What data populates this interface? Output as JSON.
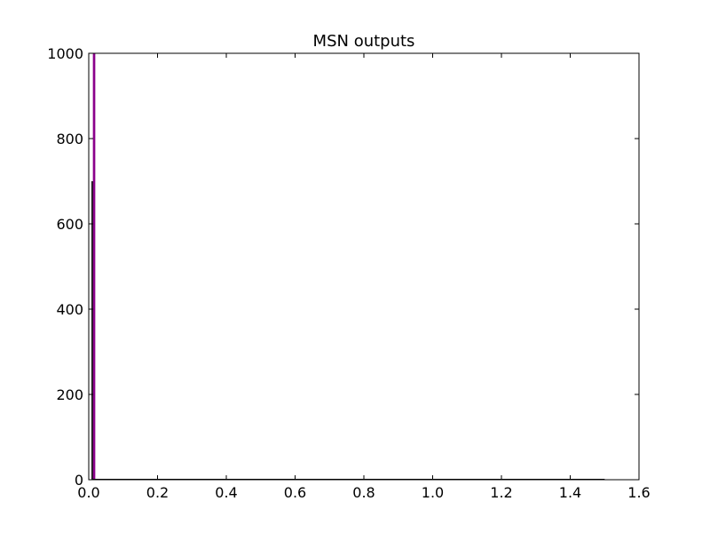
{
  "chart_data": {
    "type": "bar",
    "title": "MSN outputs",
    "xlabel": "",
    "ylabel": "",
    "xlim": [
      0,
      1.6
    ],
    "ylim": [
      0,
      1000
    ],
    "xticks": [
      "0.0",
      "0.2",
      "0.4",
      "0.6",
      "0.8",
      "1.0",
      "1.2",
      "1.4",
      "1.6"
    ],
    "yticks": [
      "0",
      "200",
      "400",
      "600",
      "800",
      "1000"
    ],
    "grid": false,
    "legend": "none",
    "bin_range": [
      0,
      1.5
    ],
    "series": [
      {
        "color": "#8b008b",
        "bins": [
          {
            "x0": 0.012,
            "x1": 0.019,
            "value": 1000
          },
          {
            "x0": 0.019,
            "x1": 1.5,
            "value": 0
          }
        ]
      },
      {
        "color": "#000000",
        "bins": [
          {
            "x0": 0.008,
            "x1": 0.012,
            "value": 700
          },
          {
            "x0": 0.012,
            "x1": 1.5,
            "value": 0
          }
        ]
      }
    ]
  }
}
